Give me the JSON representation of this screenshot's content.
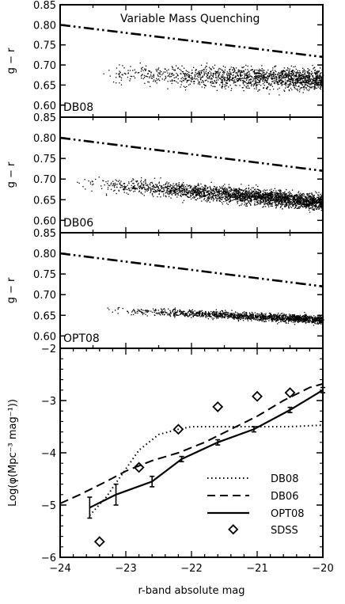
{
  "chart_data": [
    {
      "type": "scatter",
      "panel_label": "DB08",
      "title": "Variable Mass Quenching",
      "ylabel": "g − r",
      "ylim": [
        0.57,
        0.85
      ],
      "xlim": [
        -24,
        -20
      ],
      "yticks": [
        0.6,
        0.65,
        0.7,
        0.75,
        0.8,
        0.85
      ],
      "ytick_labels": [
        "0.60",
        "0.65",
        "0.70",
        "0.75",
        "0.80",
        "0.85"
      ],
      "reference_line": {
        "style": "dash-dot-dot",
        "x": [
          -24,
          -20
        ],
        "y": [
          0.8,
          0.72
        ]
      },
      "scatter": {
        "x_range": [
          -23.4,
          -20
        ],
        "y_center_at_bright": 0.68,
        "y_center_at_faint": 0.665,
        "spread": 0.05,
        "points": 1600
      }
    },
    {
      "type": "scatter",
      "panel_label": "DB06",
      "ylabel": "g − r",
      "ylim": [
        0.57,
        0.85
      ],
      "xlim": [
        -24,
        -20
      ],
      "yticks": [
        0.6,
        0.65,
        0.7,
        0.75,
        0.8,
        0.85
      ],
      "ytick_labels": [
        "0.60",
        "0.65",
        "0.70",
        "0.75",
        "0.80",
        "0.85"
      ],
      "reference_line": {
        "style": "dash-dot-dot",
        "x": [
          -24,
          -20
        ],
        "y": [
          0.8,
          0.72
        ]
      },
      "scatter": {
        "x_range": [
          -23.8,
          -20
        ],
        "y_center_at_bright": 0.695,
        "y_center_at_faint": 0.645,
        "spread": 0.035,
        "points": 2600
      }
    },
    {
      "type": "scatter",
      "panel_label": "OPT08",
      "ylabel": "g − r",
      "ylim": [
        0.57,
        0.85
      ],
      "xlim": [
        -24,
        -20
      ],
      "yticks": [
        0.6,
        0.65,
        0.7,
        0.75,
        0.8,
        0.85
      ],
      "ytick_labels": [
        "0.60",
        "0.65",
        "0.70",
        "0.75",
        "0.80",
        "0.85"
      ],
      "reference_line": {
        "style": "dash-dot-dot",
        "x": [
          -24,
          -20
        ],
        "y": [
          0.8,
          0.72
        ]
      },
      "scatter": {
        "x_range": [
          -23.3,
          -20
        ],
        "y_center_at_bright": 0.665,
        "y_center_at_faint": 0.64,
        "spread": 0.018,
        "points": 1500
      }
    },
    {
      "type": "line",
      "xlabel": "r-band absolute mag",
      "ylabel": "Log(φ(Mpc⁻³ mag⁻¹))",
      "xlim": [
        -24,
        -20
      ],
      "ylim": [
        -6,
        -2
      ],
      "xticks": [
        -24,
        -23,
        -22,
        -21,
        -20
      ],
      "xtick_labels": [
        "−24",
        "−23",
        "−22",
        "−21",
        "−20"
      ],
      "yticks": [
        -6,
        -5,
        -4,
        -3,
        -2
      ],
      "ytick_labels": [
        "−6",
        "−5",
        "−4",
        "−3",
        "−2"
      ],
      "legend_position": "bottom-right",
      "series": [
        {
          "name": "DB08",
          "style": "dotted",
          "x": [
            -23.55,
            -23.3,
            -23.05,
            -22.8,
            -22.5,
            -22.2,
            -22.0,
            -21.6,
            -21.0,
            -20.5,
            -20.0
          ],
          "y": [
            -5.2,
            -4.85,
            -4.4,
            -3.95,
            -3.65,
            -3.55,
            -3.5,
            -3.5,
            -3.5,
            -3.5,
            -3.47
          ]
        },
        {
          "name": "DB06",
          "style": "dashed",
          "x": [
            -24.0,
            -23.7,
            -23.3,
            -23.0,
            -22.6,
            -22.2,
            -21.8,
            -21.4,
            -21.0,
            -20.6,
            -20.2,
            -20.0
          ],
          "y": [
            -4.97,
            -4.8,
            -4.55,
            -4.35,
            -4.15,
            -4.0,
            -3.8,
            -3.55,
            -3.3,
            -3.0,
            -2.75,
            -2.68
          ]
        },
        {
          "name": "OPT08",
          "style": "solid",
          "x": [
            -23.55,
            -23.15,
            -22.6,
            -22.15,
            -21.6,
            -21.05,
            -20.5,
            -20.0
          ],
          "y": [
            -5.05,
            -4.8,
            -4.55,
            -4.12,
            -3.8,
            -3.55,
            -3.18,
            -2.8
          ],
          "yerr": [
            0.2,
            0.2,
            0.1,
            0.05,
            0.05,
            0.05,
            0.05,
            0.05
          ]
        },
        {
          "name": "SDSS",
          "style": "markers",
          "x": [
            -23.4,
            -22.8,
            -22.2,
            -21.6,
            -21.0,
            -20.5
          ],
          "y": [
            -5.7,
            -4.28,
            -3.55,
            -3.12,
            -2.92,
            -2.85
          ]
        }
      ]
    }
  ]
}
